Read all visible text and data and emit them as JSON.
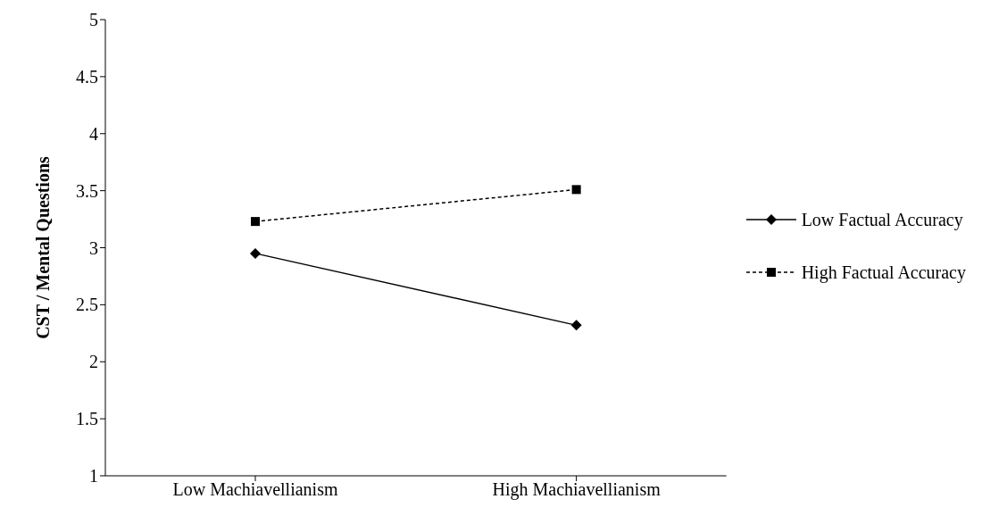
{
  "chart_data": {
    "type": "line",
    "ylabel": "CST / Mental Questions",
    "categories": [
      "Low Machiavellianism",
      "High Machiavellianism"
    ],
    "series": [
      {
        "name": "Low Factual Accuracy",
        "color": "#000000",
        "values": [
          2.95,
          2.32
        ],
        "marker": "diamond",
        "line_style": "solid"
      },
      {
        "name": "High Factual Accuracy",
        "color": "#000000",
        "values": [
          3.23,
          3.51
        ],
        "marker": "square",
        "line_style": "dashed"
      }
    ],
    "ylim": [
      1,
      5
    ],
    "yticks": [
      1,
      1.5,
      2,
      2.5,
      3,
      3.5,
      4,
      4.5,
      5
    ],
    "grid": false,
    "legend": "right"
  }
}
